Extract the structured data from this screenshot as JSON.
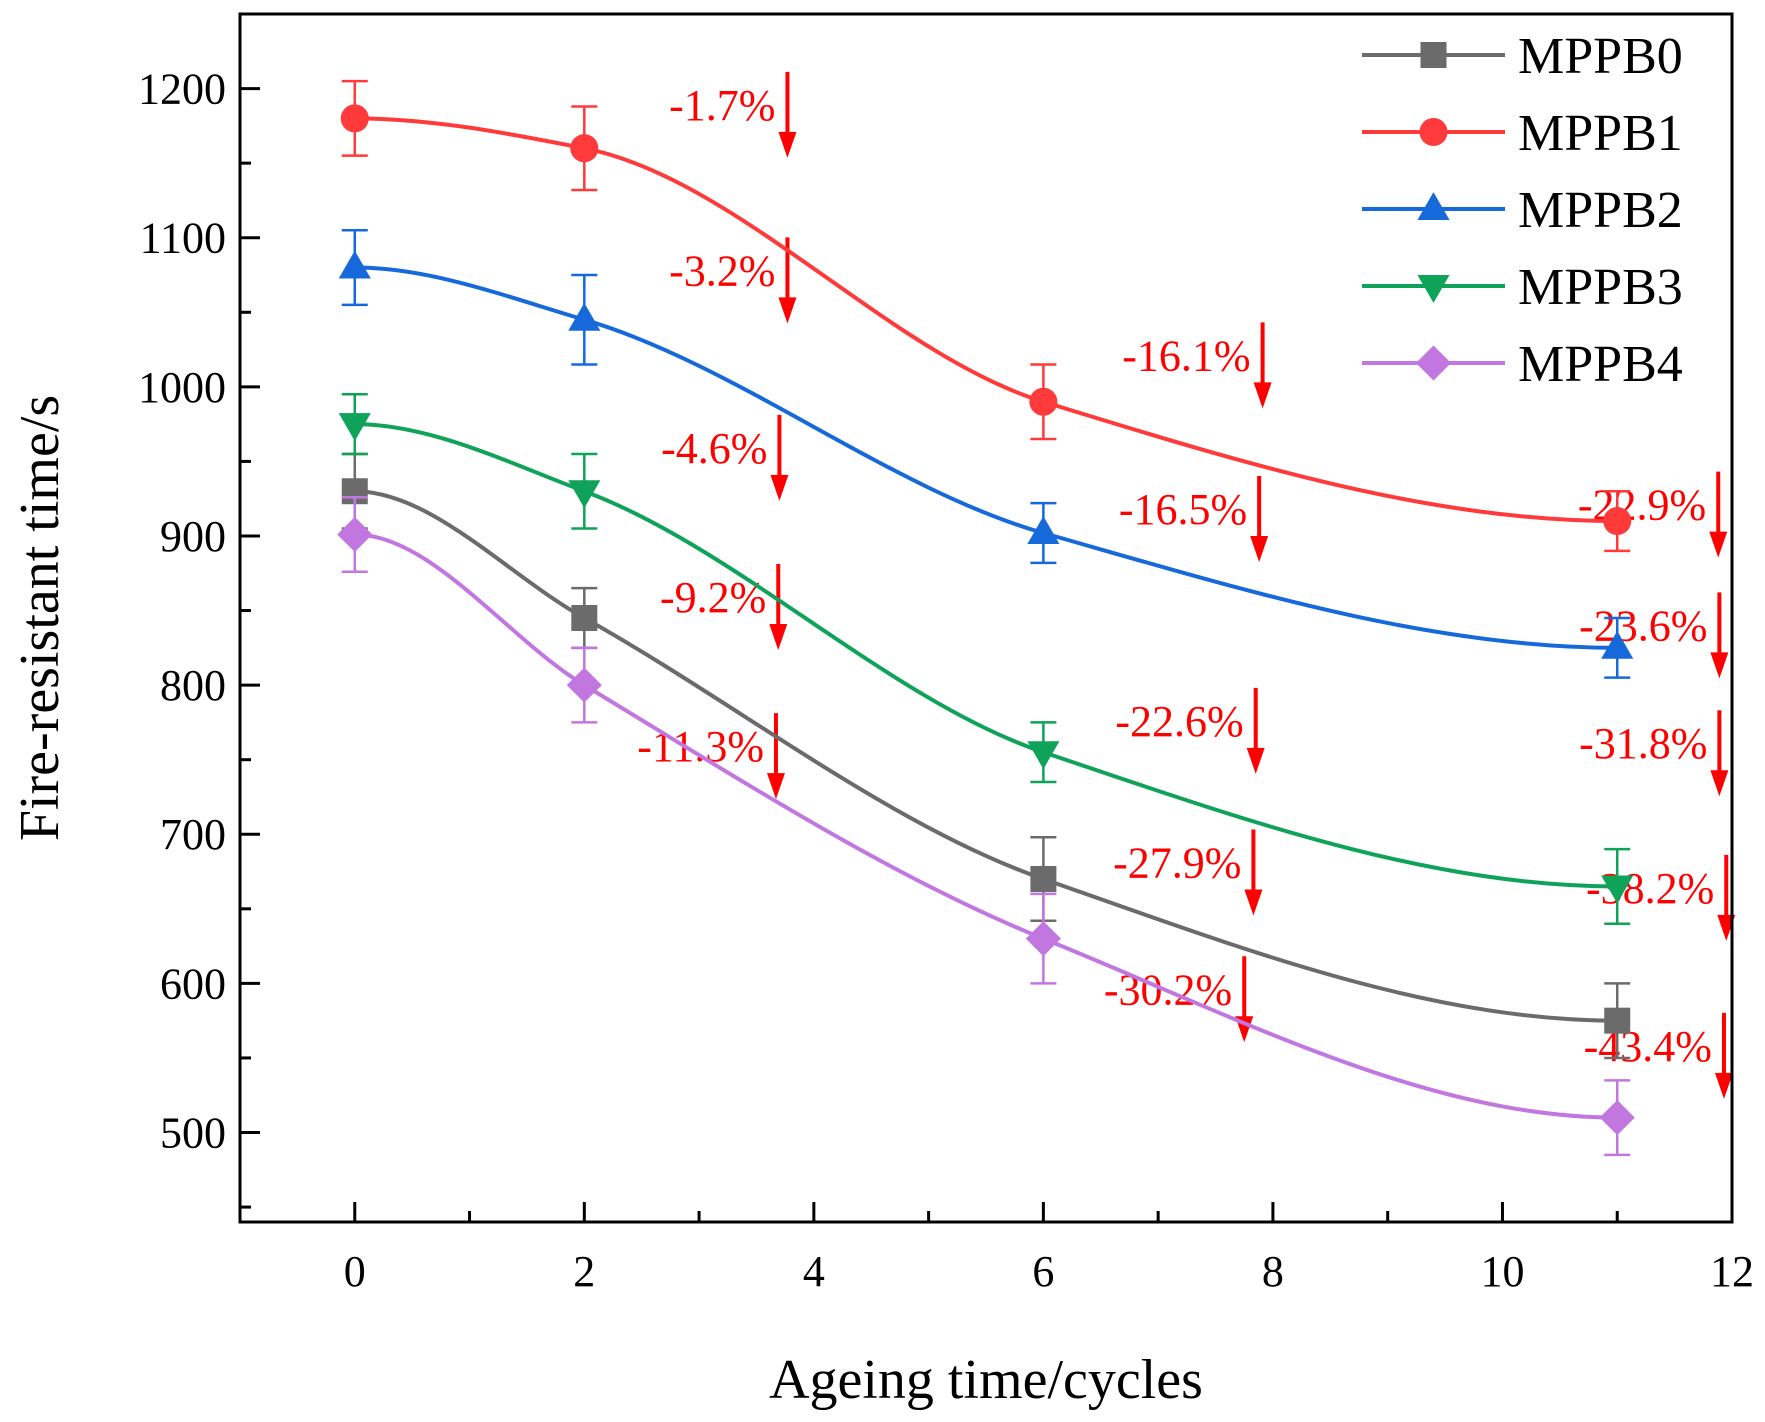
{
  "chart_data": {
    "type": "line",
    "title": "",
    "xlabel": "Ageing time/cycles",
    "ylabel": "Fire-resistant time/s",
    "xlim": [
      -1,
      12
    ],
    "ylim": [
      440,
      1250
    ],
    "x_ticks": [
      0,
      2,
      4,
      6,
      8,
      10,
      12
    ],
    "y_ticks": [
      500,
      600,
      700,
      800,
      900,
      1000,
      1100,
      1200
    ],
    "x_tick_labels": [
      "0",
      "2",
      "4",
      "6",
      "8",
      "10",
      "12"
    ],
    "y_tick_labels": [
      "500",
      "600",
      "700",
      "800",
      "900",
      "1000",
      "1100",
      "1200"
    ],
    "grid": false,
    "legend_position": "top-right",
    "x": [
      0,
      2,
      6,
      11
    ],
    "series": [
      {
        "name": "MPPB0",
        "color": "#6b6b6b",
        "marker": "square",
        "values": [
          930,
          845,
          670,
          575
        ],
        "errors": [
          25,
          20,
          28,
          25
        ]
      },
      {
        "name": "MPPB1",
        "color": "#ff3a3a",
        "marker": "circle",
        "values": [
          1180,
          1160,
          990,
          910
        ],
        "errors": [
          25,
          28,
          25,
          20
        ]
      },
      {
        "name": "MPPB2",
        "color": "#1569db",
        "marker": "triangle-up",
        "values": [
          1080,
          1045,
          902,
          825
        ],
        "errors": [
          25,
          30,
          20,
          20
        ]
      },
      {
        "name": "MPPB3",
        "color": "#0fa35a",
        "marker": "triangle-down",
        "values": [
          975,
          930,
          755,
          665
        ],
        "errors": [
          20,
          25,
          20,
          25
        ]
      },
      {
        "name": "MPPB4",
        "color": "#c277e0",
        "marker": "diamond",
        "values": [
          901,
          800,
          630,
          510
        ],
        "errors": [
          25,
          25,
          30,
          25
        ]
      }
    ],
    "annotations": [
      {
        "text": "-1.7%",
        "series": "MPPB1",
        "x": 2,
        "label_y": 1179,
        "arrow_x": 3.77
      },
      {
        "text": "-16.1%",
        "series": "MPPB1",
        "x": 6,
        "label_y": 1011,
        "arrow_x": 7.91
      },
      {
        "text": "-22.9%",
        "series": "MPPB1",
        "x": 11,
        "label_y": 911,
        "arrow_x": 11.88
      },
      {
        "text": "-3.2%",
        "series": "MPPB2",
        "x": 2,
        "label_y": 1068,
        "arrow_x": 3.77
      },
      {
        "text": "-16.5%",
        "series": "MPPB2",
        "x": 6,
        "label_y": 908,
        "arrow_x": 7.88
      },
      {
        "text": "-23.6%",
        "series": "MPPB2",
        "x": 11,
        "label_y": 830,
        "arrow_x": 11.89
      },
      {
        "text": "-4.6%",
        "series": "MPPB3",
        "x": 2,
        "label_y": 949,
        "arrow_x": 3.7
      },
      {
        "text": "-22.6%",
        "series": "MPPB3",
        "x": 6,
        "label_y": 766,
        "arrow_x": 7.85
      },
      {
        "text": "-31.8%",
        "series": "MPPB3",
        "x": 11,
        "label_y": 751,
        "arrow_x": 11.89
      },
      {
        "text": "-9.2%",
        "series": "MPPB0",
        "x": 2,
        "label_y": 849,
        "arrow_x": 3.69
      },
      {
        "text": "-27.9%",
        "series": "MPPB0",
        "x": 6,
        "label_y": 671,
        "arrow_x": 7.83
      },
      {
        "text": "-38.2%",
        "series": "MPPB0",
        "x": 11,
        "label_y": 654,
        "arrow_x": 11.95
      },
      {
        "text": "-11.3%",
        "series": "MPPB4",
        "x": 2,
        "label_y": 749,
        "arrow_x": 3.67
      },
      {
        "text": "-30.2%",
        "series": "MPPB4",
        "x": 6,
        "label_y": 586,
        "arrow_x": 7.75
      },
      {
        "text": "-43.4%",
        "series": "MPPB4",
        "x": 11,
        "label_y": 548,
        "arrow_x": 11.93
      }
    ]
  }
}
